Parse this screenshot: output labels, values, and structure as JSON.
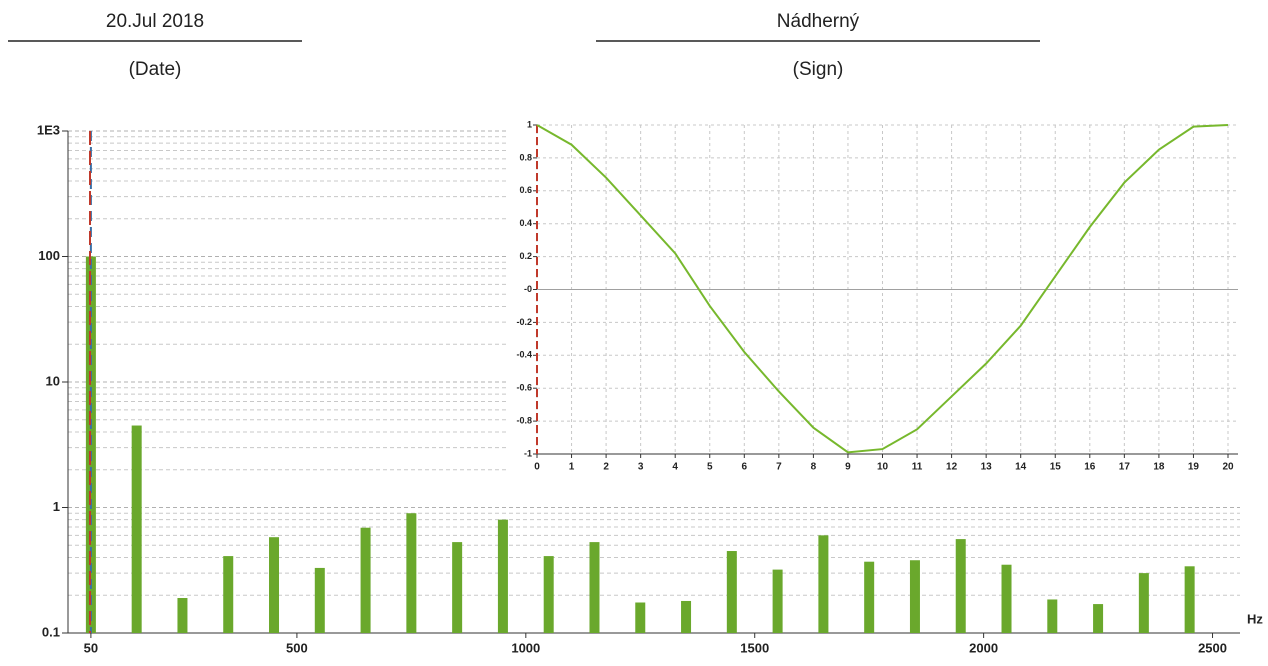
{
  "header": {
    "date": "20.Jul 2018",
    "date_caption": "(Date)",
    "sign": "Nádherný",
    "sign_caption": "(Sign)"
  },
  "chart_data": [
    {
      "type": "bar",
      "x_label": "Hz",
      "color": "#6aa82c",
      "log_y": true,
      "grid": true,
      "x": [
        50,
        150,
        250,
        350,
        450,
        550,
        650,
        750,
        850,
        950,
        1050,
        1150,
        1250,
        1350,
        1450,
        1550,
        1650,
        1750,
        1850,
        1950,
        2050,
        2150,
        2250,
        2350,
        2450
      ],
      "values": [
        100,
        4.5,
        0.19,
        0.41,
        0.58,
        0.33,
        0.69,
        0.9,
        0.53,
        0.8,
        0.41,
        0.53,
        0.175,
        0.18,
        0.45,
        0.32,
        0.6,
        0.37,
        0.38,
        0.56,
        0.35,
        0.185,
        0.17,
        0.3,
        0.34
      ],
      "xlim": [
        0,
        2560
      ],
      "xticks": [
        50,
        500,
        1000,
        1500,
        2000,
        2500
      ],
      "ylim": [
        0.1,
        1000
      ],
      "yticks": [
        0.1,
        1,
        10,
        100,
        {
          "value": 1000,
          "label": "1E3"
        }
      ]
    },
    {
      "type": "line",
      "color": "#77b82d",
      "grid": true,
      "x": [
        0,
        1,
        2,
        3,
        4,
        5,
        6,
        7,
        8,
        9,
        10,
        11,
        12,
        13,
        14,
        15,
        16,
        17,
        18,
        19,
        20
      ],
      "values": [
        1.0,
        0.88,
        0.68,
        0.45,
        0.22,
        -0.1,
        -0.38,
        -0.62,
        -0.84,
        -0.99,
        -0.97,
        -0.85,
        -0.65,
        -0.45,
        -0.22,
        0.08,
        0.38,
        0.65,
        0.85,
        0.99,
        1.0
      ],
      "xlim": [
        0,
        20
      ],
      "xticks": [
        0,
        1,
        2,
        3,
        4,
        5,
        6,
        7,
        8,
        9,
        10,
        11,
        12,
        13,
        14,
        15,
        16,
        17,
        18,
        19,
        20
      ],
      "ylim": [
        -1,
        1
      ],
      "yticks": [
        -1,
        -0.8,
        -0.6,
        -0.4,
        -0.2,
        {
          "value": 0,
          "label": "-0"
        },
        0.2,
        0.4,
        0.6,
        0.8,
        1
      ]
    }
  ]
}
